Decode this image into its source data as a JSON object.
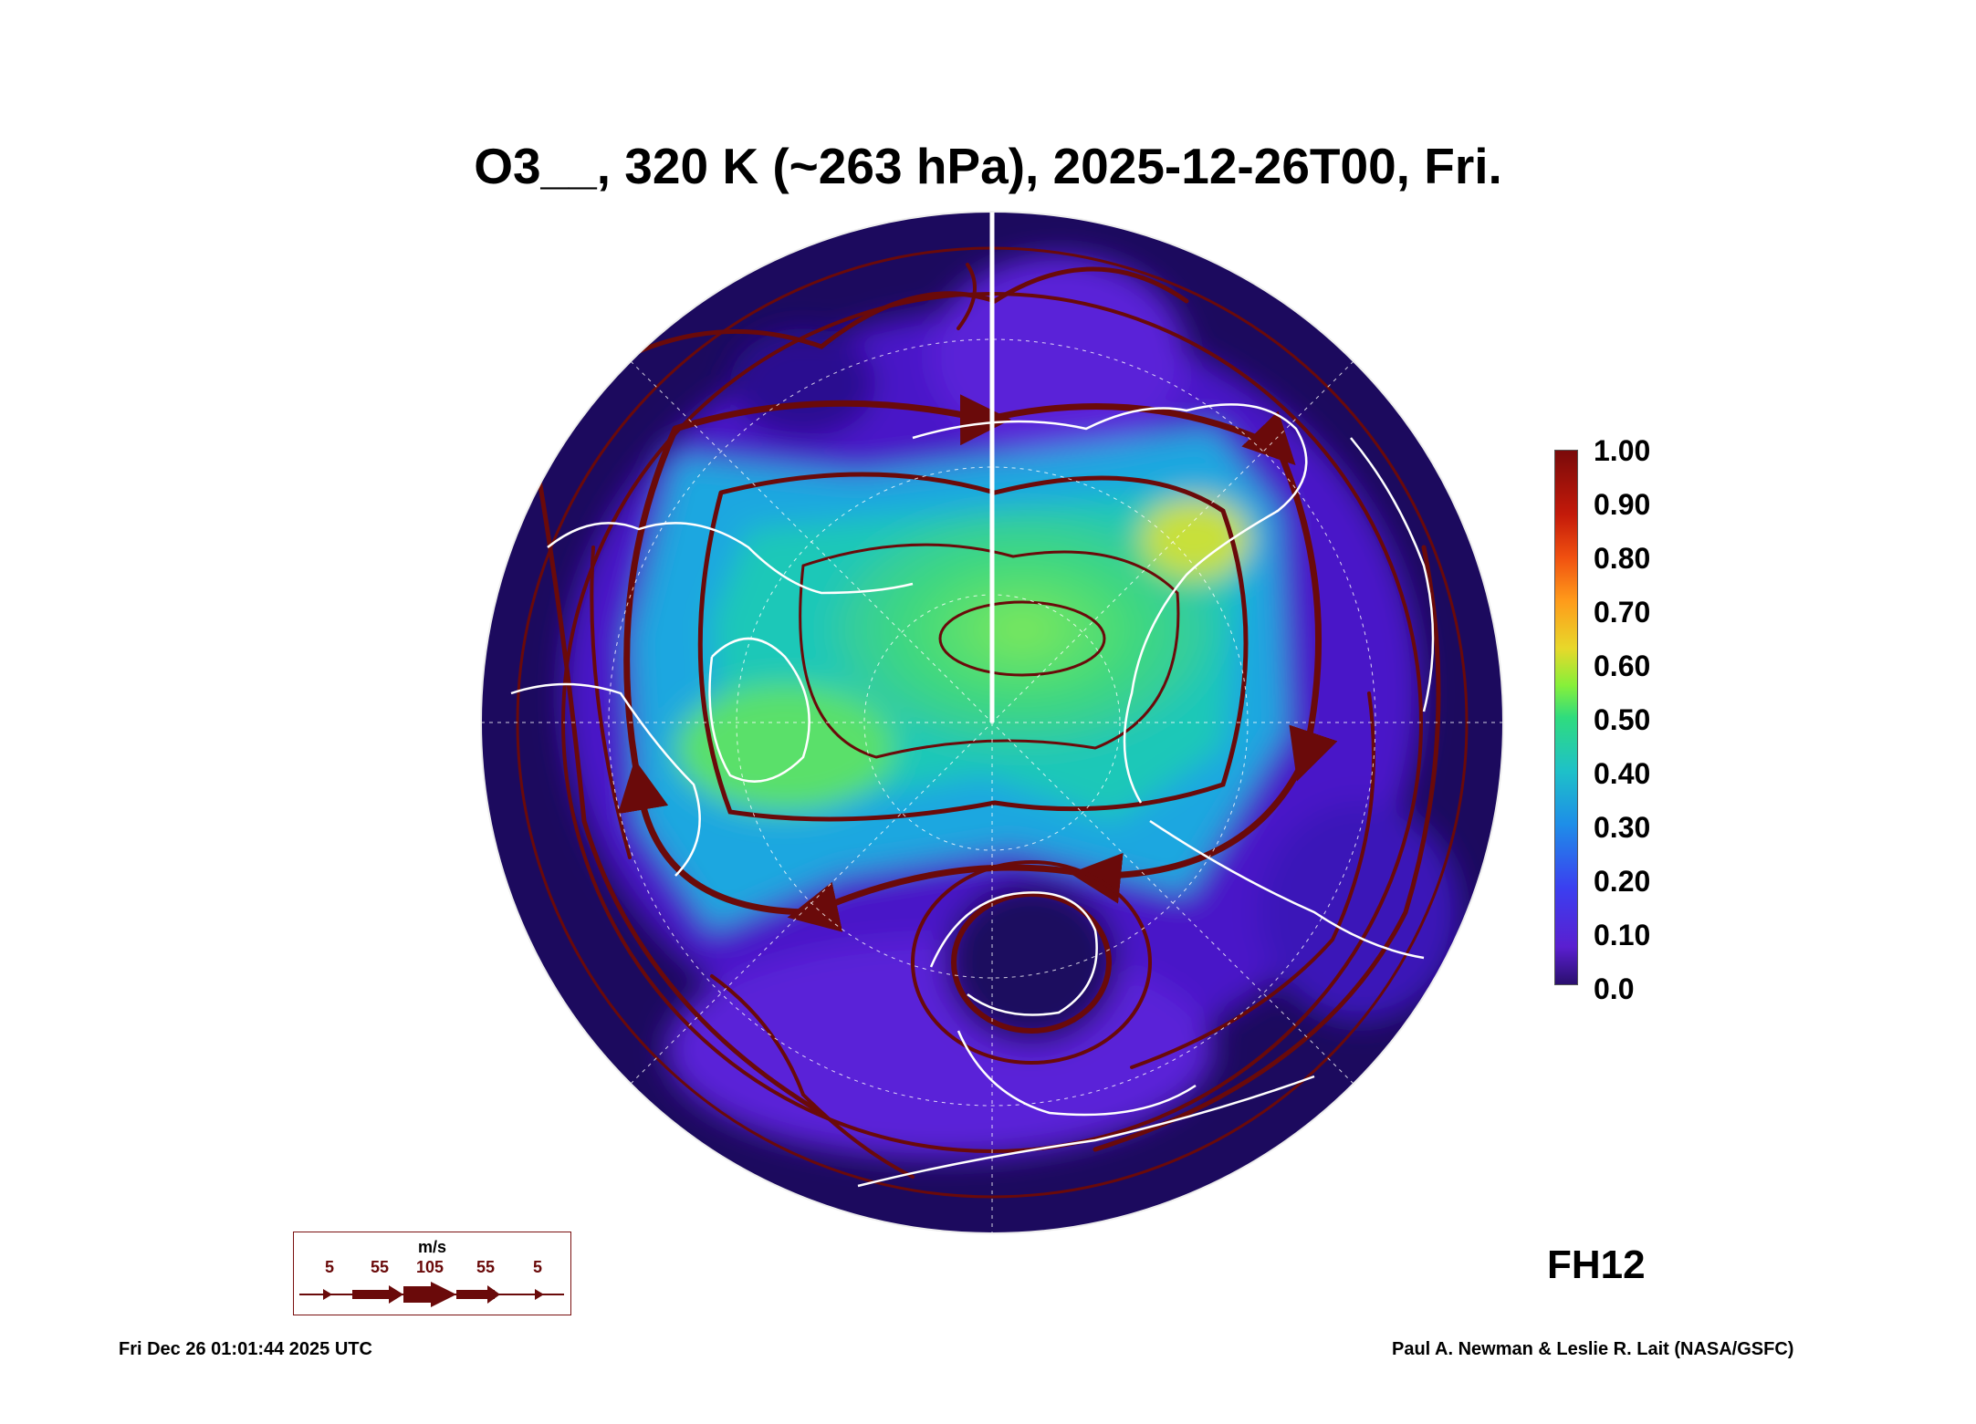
{
  "title": "O3__, 320 K (~263 hPa), 2025-12-26T00, Fri.",
  "colorbar": {
    "labels": [
      "1.00",
      "0.90",
      "0.80",
      "0.70",
      "0.60",
      "0.50",
      "0.40",
      "0.30",
      "0.20",
      "0.10",
      "0.0"
    ],
    "range": [
      0.0,
      1.0
    ],
    "colors": [
      "#2a0f6e",
      "#5a1fd0",
      "#3b3ff0",
      "#1e8ee8",
      "#1ec1c8",
      "#2fdc7e",
      "#86f03a",
      "#e8d82a",
      "#ff9a1a",
      "#f05010",
      "#c41a0a",
      "#7a0a0a"
    ]
  },
  "forecast_hour": "FH12",
  "wind_legend": {
    "units": "m/s",
    "speeds": [
      "5",
      "55",
      "105",
      "55",
      "5"
    ],
    "color": "#6a0a0a"
  },
  "timestamp": "Fri Dec 26 01:01:44 2025 UTC",
  "credit": "Paul A. Newman & Leslie R. Lait (NASA/GSFC)",
  "map": {
    "projection": "north-polar-stereographic",
    "field": "ozone",
    "streamline_color": "#6a0a0a",
    "coastline_color": "#ffffff"
  }
}
